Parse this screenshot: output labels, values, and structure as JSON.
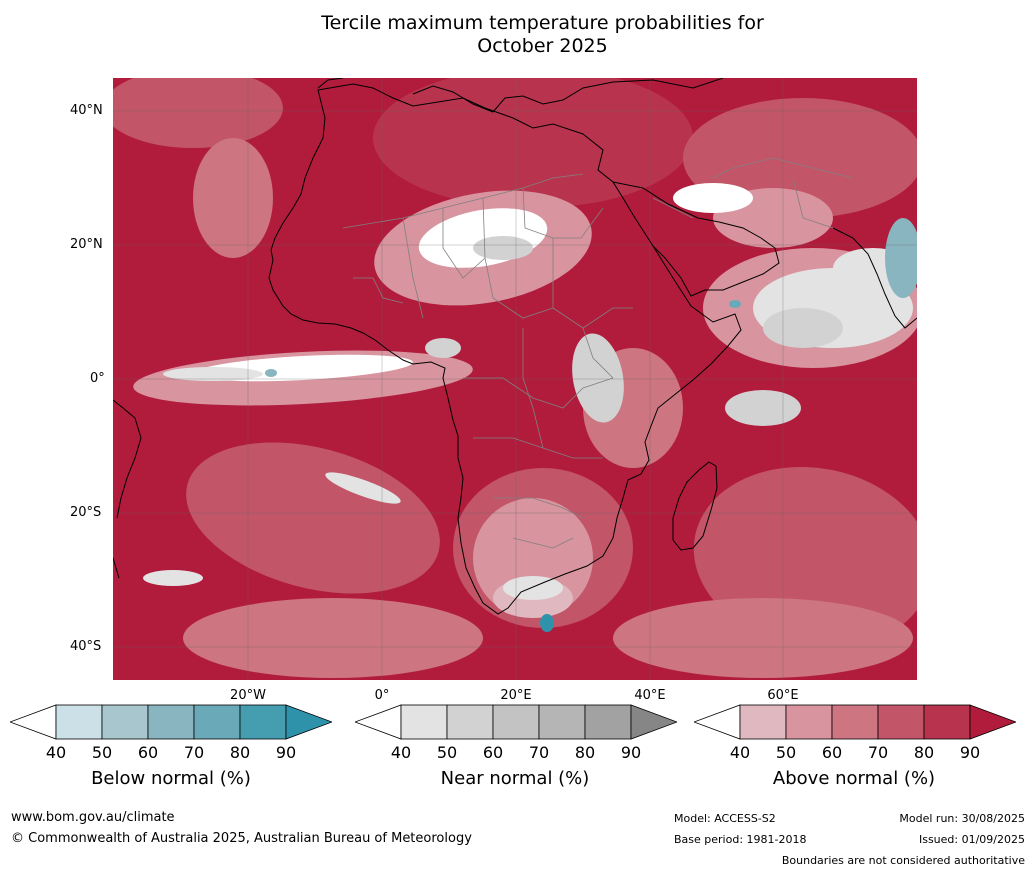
{
  "title": {
    "line1": "Tercile maximum temperature probabilities for",
    "line2": "October 2025"
  },
  "map": {
    "lat_labels": [
      "40°N",
      "20°N",
      "0°",
      "20°S",
      "40°S"
    ],
    "lon_labels": [
      "20°W",
      "0°",
      "20°E",
      "40°E",
      "60°E"
    ],
    "colors": {
      "above": [
        "#ffffff",
        "#e0b9c0",
        "#d8949f",
        "#cd7581",
        "#c25568",
        "#b8344e",
        "#b11c3c"
      ],
      "near": [
        "#ffffff",
        "#e3e3e3",
        "#d2d2d2",
        "#c3c3c3",
        "#b5b5b5",
        "#a2a2a2",
        "#868686"
      ],
      "below": [
        "#ffffff",
        "#cbe1e7",
        "#a8c6cd",
        "#89b5c0",
        "#6aa9b7",
        "#449eb0",
        "#2e93aa"
      ],
      "coast": "#000000",
      "borders": "#808080"
    }
  },
  "colorbars": [
    {
      "label": "Below normal (%)",
      "ticks": [
        "40",
        "50",
        "60",
        "70",
        "80",
        "90"
      ],
      "scheme": "below"
    },
    {
      "label": "Near normal (%)",
      "ticks": [
        "40",
        "50",
        "60",
        "70",
        "80",
        "90"
      ],
      "scheme": "near"
    },
    {
      "label": "Above normal (%)",
      "ticks": [
        "40",
        "50",
        "60",
        "70",
        "80",
        "90"
      ],
      "scheme": "above"
    }
  ],
  "footer": {
    "website": "www.bom.gov.au/climate",
    "copyright": "© Commonwealth of Australia 2025, Australian Bureau of Meteorology",
    "model": "Model: ACCESS-S2",
    "base_period": "Base period: 1981-2018",
    "model_run": "Model run: 30/08/2025",
    "issued": "Issued: 01/09/2025",
    "disclaimer": "Boundaries are not considered authoritative"
  }
}
